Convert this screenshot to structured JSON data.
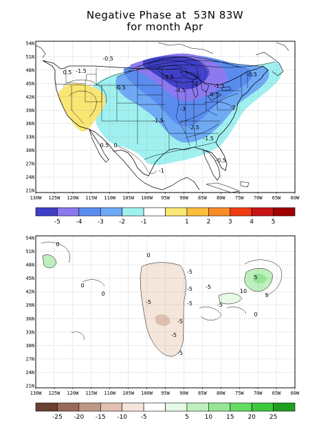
{
  "title": {
    "line1": "Negative Phase at  53N 83W",
    "line2": "for month Apr"
  },
  "axes": {
    "lat_labels": [
      "54N",
      "51N",
      "48N",
      "45N",
      "42N",
      "39N",
      "36N",
      "33N",
      "30N",
      "27N",
      "24N",
      "21N"
    ],
    "lon_labels": [
      "130W",
      "125W",
      "120W",
      "115W",
      "110W",
      "105W",
      "100W",
      "95W",
      "90W",
      "85W",
      "80W",
      "75W",
      "70W",
      "65W",
      "60W"
    ],
    "gridlines": "dotted"
  },
  "panel1": {
    "contour_labels": [
      "-0.5",
      "-1.5",
      "0.5",
      "-0.5",
      "-5.5",
      "-4.5",
      "-1",
      "-1.5",
      "-0.5",
      "-3",
      "-2",
      "-1.5",
      "-2.5",
      "-1.5",
      "0.5",
      "0",
      "-0.5",
      "-1",
      "0.5"
    ],
    "colorbar": {
      "colors": [
        "#3f3fc8",
        "#8c78f0",
        "#5a8cf0",
        "#6eaaf5",
        "#a0f0f0",
        "#ffffff",
        "#fae673",
        "#fabe3c",
        "#fa8c28",
        "#f03c14",
        "#c81414",
        "#a00000"
      ],
      "labels": [
        "-5",
        "-4",
        "-3",
        "-2",
        "-1",
        "1",
        "2",
        "3",
        "4",
        "5"
      ]
    }
  },
  "panel2": {
    "contour_labels": [
      "0",
      "-5",
      "-5",
      "-5",
      "0",
      "-5",
      "-5",
      "-5",
      "0",
      "-5",
      "-5",
      "5",
      "0",
      "10",
      "5",
      "0",
      "-5"
    ],
    "colorbar": {
      "colors": [
        "#6b4030",
        "#9a6a58",
        "#c09888",
        "#e0c0b0",
        "#f5e6dc",
        "#ffffff",
        "#e6fae6",
        "#bef0be",
        "#96e696",
        "#64dc64",
        "#3cc83c",
        "#1ea01e"
      ],
      "labels": [
        "-25",
        "-20",
        "-15",
        "-10",
        "-5",
        "5",
        "10",
        "15",
        "20",
        "25"
      ]
    }
  }
}
